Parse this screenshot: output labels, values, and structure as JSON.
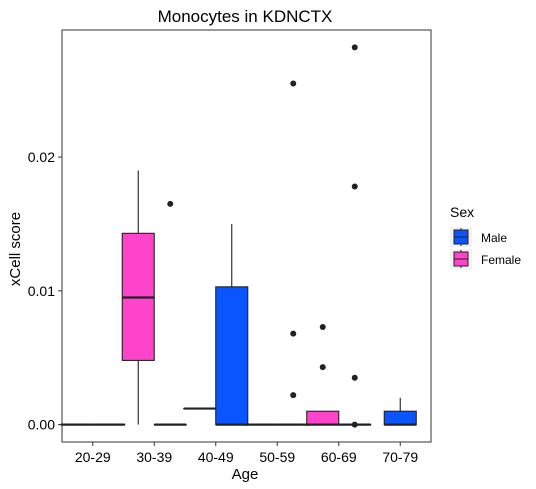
{
  "chart_data": {
    "type": "boxplot",
    "title": "Monocytes in KDNCTX",
    "xlabel": "Age",
    "ylabel": "xCell score",
    "categories": [
      "20-29",
      "30-39",
      "40-49",
      "50-59",
      "60-69",
      "70-79"
    ],
    "ylim": [
      -0.0013,
      0.0295
    ],
    "yticks": [
      0.0,
      0.01,
      0.02
    ],
    "ytick_labels": [
      "0.00",
      "0.01",
      "0.02"
    ],
    "grid": false,
    "legend": {
      "title": "Sex",
      "position": "right"
    },
    "series": [
      {
        "name": "Male",
        "color": "#0a55ff",
        "boxes": [
          {
            "category": "20-29",
            "min": 0,
            "q1": 0,
            "median": 0,
            "q3": 0,
            "max": 0,
            "outliers": []
          },
          {
            "category": "30-39",
            "min": 0,
            "q1": 0,
            "median": 0,
            "q3": 0,
            "max": 0,
            "outliers": [
              0.0165
            ]
          },
          {
            "category": "40-49",
            "min": 0,
            "q1": 0,
            "median": 0,
            "q3": 0.0103,
            "max": 0.015,
            "outliers": []
          },
          {
            "category": "50-59",
            "min": 0,
            "q1": 0,
            "median": 0,
            "q3": 0,
            "max": 0,
            "outliers": [
              0.0255,
              0.0068,
              0.0022
            ]
          },
          {
            "category": "60-69",
            "min": 0,
            "q1": 0,
            "median": 0,
            "q3": 0,
            "max": 0,
            "outliers": [
              0.0282,
              0.0178,
              0.0035,
              0.0
            ]
          },
          {
            "category": "70-79",
            "min": 0,
            "q1": 0,
            "median": 0,
            "q3": 0.001,
            "max": 0.002,
            "outliers": []
          }
        ]
      },
      {
        "name": "Female",
        "color": "#ff44cc",
        "boxes": [
          {
            "category": "20-29",
            "min": 0,
            "q1": 0,
            "median": 0,
            "q3": 0,
            "max": 0,
            "outliers": []
          },
          {
            "category": "30-39",
            "min": 0,
            "q1": 0.0048,
            "median": 0.0095,
            "q3": 0.0143,
            "max": 0.019,
            "outliers": []
          },
          {
            "category": "40-49",
            "min": 0.0012,
            "q1": 0.0012,
            "median": 0.0012,
            "q3": 0.0012,
            "max": 0.0012,
            "outliers": []
          },
          {
            "category": "50-59",
            "min": 0,
            "q1": 0,
            "median": 0,
            "q3": 0,
            "max": 0,
            "outliers": []
          },
          {
            "category": "60-69",
            "min": 0,
            "q1": 0,
            "median": 0,
            "q3": 0.001,
            "max": 0.001,
            "outliers": [
              0.0073,
              0.0043
            ]
          }
        ]
      }
    ]
  }
}
